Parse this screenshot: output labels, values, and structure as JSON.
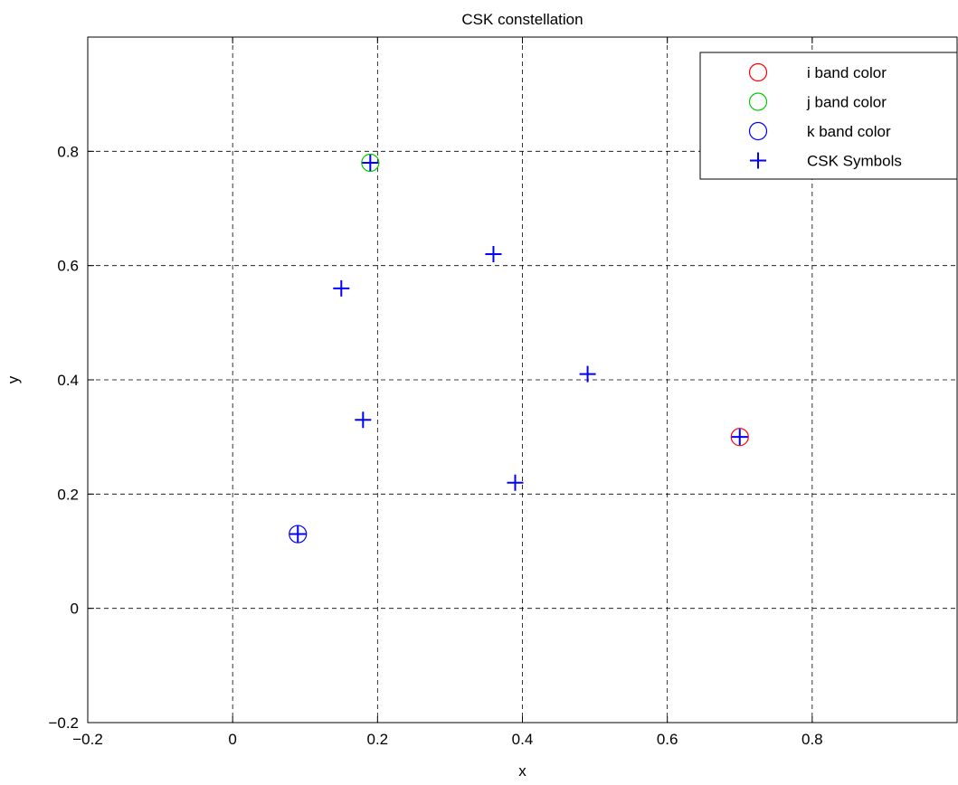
{
  "chart_data": {
    "type": "scatter",
    "title": "CSK constellation",
    "xlabel": "x",
    "ylabel": "y",
    "xlim": [
      -0.2,
      1.0
    ],
    "ylim": [
      -0.2,
      1.0
    ],
    "xticks": [
      -0.2,
      0,
      0.2,
      0.4,
      0.6,
      0.8
    ],
    "yticks": [
      -0.2,
      0,
      0.2,
      0.4,
      0.6,
      0.8
    ],
    "xtick_labels": [
      "−0.2",
      "0",
      "0.2",
      "0.4",
      "0.6",
      "0.8"
    ],
    "ytick_labels": [
      "−0.2",
      "0",
      "0.2",
      "0.4",
      "0.6",
      "0.8"
    ],
    "grid": true,
    "legend_position": "top-right",
    "series": [
      {
        "name": "i band color",
        "marker": "circle",
        "color": "#ff0000",
        "points": [
          [
            0.7,
            0.3
          ]
        ]
      },
      {
        "name": "j band color",
        "marker": "circle",
        "color": "#00c800",
        "points": [
          [
            0.19,
            0.78
          ]
        ]
      },
      {
        "name": "k band color",
        "marker": "circle",
        "color": "#0000ff",
        "points": [
          [
            0.09,
            0.13
          ]
        ]
      },
      {
        "name": "CSK Symbols",
        "marker": "plus",
        "color": "#0000ff",
        "points": [
          [
            0.7,
            0.3
          ],
          [
            0.19,
            0.78
          ],
          [
            0.09,
            0.13
          ],
          [
            0.36,
            0.62
          ],
          [
            0.15,
            0.56
          ],
          [
            0.49,
            0.41
          ],
          [
            0.18,
            0.33
          ],
          [
            0.39,
            0.22
          ]
        ]
      }
    ]
  }
}
